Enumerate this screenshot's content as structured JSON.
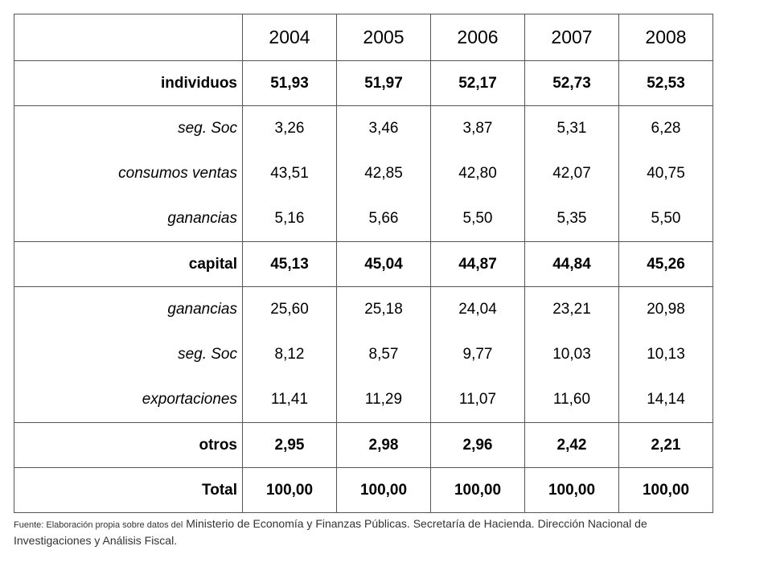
{
  "table": {
    "header": {
      "corner": "",
      "years": [
        "2004",
        "2005",
        "2006",
        "2007",
        "2008"
      ]
    },
    "rows": [
      {
        "label": "individuos",
        "style": "bold",
        "values": [
          "51,93",
          "51,97",
          "52,17",
          "52,73",
          "52,53"
        ]
      },
      {
        "label": "seg. Soc",
        "style": "sub",
        "values": [
          "3,26",
          "3,46",
          "3,87",
          "5,31",
          "6,28"
        ]
      },
      {
        "label": "consumos ventas",
        "style": "sub",
        "values": [
          "43,51",
          "42,85",
          "42,80",
          "42,07",
          "40,75"
        ]
      },
      {
        "label": "ganancias",
        "style": "sub",
        "values": [
          "5,16",
          "5,66",
          "5,50",
          "5,35",
          "5,50"
        ]
      },
      {
        "label": "capital",
        "style": "bold",
        "values": [
          "45,13",
          "45,04",
          "44,87",
          "44,84",
          "45,26"
        ]
      },
      {
        "label": "ganancias",
        "style": "sub",
        "values": [
          "25,60",
          "25,18",
          "24,04",
          "23,21",
          "20,98"
        ]
      },
      {
        "label": "seg. Soc",
        "style": "sub",
        "values": [
          "8,12",
          "8,57",
          "9,77",
          "10,03",
          "10,13"
        ]
      },
      {
        "label": "exportaciones",
        "style": "sub",
        "values": [
          "11,41",
          "11,29",
          "11,07",
          "11,60",
          "14,14"
        ]
      },
      {
        "label": "otros",
        "style": "bold",
        "values": [
          "2,95",
          "2,98",
          "2,96",
          "2,42",
          "2,21"
        ]
      },
      {
        "label": "Total",
        "style": "bold",
        "values": [
          "100,00",
          "100,00",
          "100,00",
          "100,00",
          "100,00"
        ]
      }
    ]
  },
  "source": {
    "prefix": "Fuente: Elaboración propia sobre datos del",
    "text": " Ministerio de Economía y Finanzas Públicas. Secretaría de Hacienda. Dirección Nacional de Investigaciones y Análisis Fiscal."
  }
}
